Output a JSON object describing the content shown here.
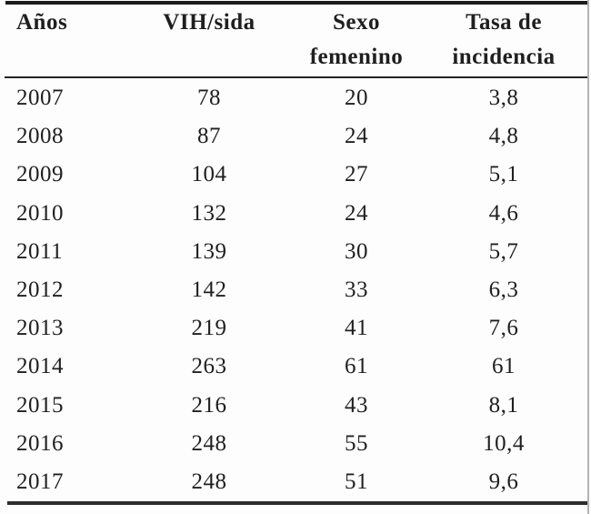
{
  "colors": {
    "background": "#fdfdfd",
    "text": "#1f1f1f",
    "rule_dark": "#1c1c1c",
    "edge_gray": "#b3b3b3"
  },
  "table": {
    "header": [
      {
        "line1": "Años",
        "line2": ""
      },
      {
        "line1": "VIH/sida",
        "line2": ""
      },
      {
        "line1": "Sexo",
        "line2": "femenino"
      },
      {
        "line1": "Tasa de",
        "line2": "incidencia"
      }
    ],
    "rows": [
      [
        "2007",
        "78",
        "20",
        "3,8"
      ],
      [
        "2008",
        "87",
        "24",
        "4,8"
      ],
      [
        "2009",
        "104",
        "27",
        "5,1"
      ],
      [
        "2010",
        "132",
        "24",
        "4,6"
      ],
      [
        "2011",
        "139",
        "30",
        "5,7"
      ],
      [
        "2012",
        "142",
        "33",
        "6,3"
      ],
      [
        "2013",
        "219",
        "41",
        "7,6"
      ],
      [
        "2014",
        "263",
        "61",
        "61"
      ],
      [
        "2015",
        "216",
        "43",
        "8,1"
      ],
      [
        "2016",
        "248",
        "55",
        "10,4"
      ],
      [
        "2017",
        "248",
        "51",
        "9,6"
      ]
    ]
  },
  "chart_data": {
    "type": "table",
    "columns": [
      "Años",
      "VIH/sida",
      "Sexo femenino",
      "Tasa de incidencia"
    ],
    "rows": [
      [
        "2007",
        "78",
        "20",
        "3,8"
      ],
      [
        "2008",
        "87",
        "24",
        "4,8"
      ],
      [
        "2009",
        "104",
        "27",
        "5,1"
      ],
      [
        "2010",
        "132",
        "24",
        "4,6"
      ],
      [
        "2011",
        "139",
        "30",
        "5,7"
      ],
      [
        "2012",
        "142",
        "33",
        "6,3"
      ],
      [
        "2013",
        "219",
        "41",
        "7,6"
      ],
      [
        "2014",
        "263",
        "61",
        "61"
      ],
      [
        "2015",
        "216",
        "43",
        "8,1"
      ],
      [
        "2016",
        "248",
        "55",
        "10,4"
      ],
      [
        "2017",
        "248",
        "51",
        "9,6"
      ]
    ]
  }
}
